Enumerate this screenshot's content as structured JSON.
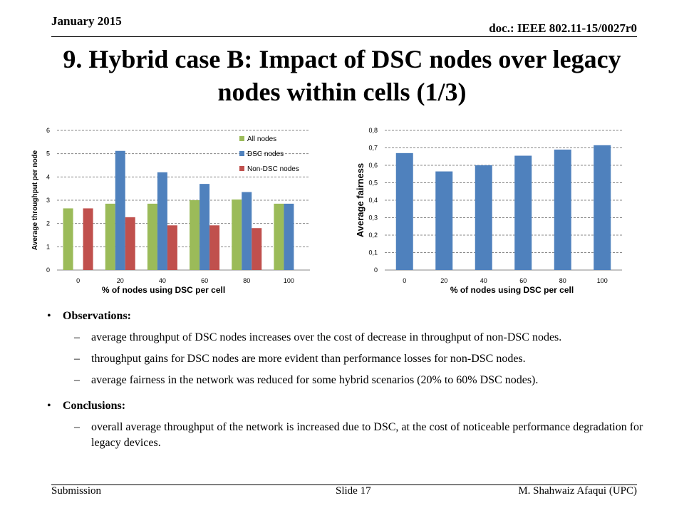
{
  "header": {
    "date": "January 2015",
    "doc": "doc.: IEEE 802.11-15/0027r0"
  },
  "title": "9. Hybrid case B: Impact of DSC nodes over legacy nodes within cells (1/3)",
  "colors": {
    "all_nodes": "#9BBB59",
    "dsc_nodes": "#4F81BD",
    "non_dsc_nodes": "#C0504D"
  },
  "chart_data": [
    {
      "type": "bar",
      "categories": [
        "0",
        "20",
        "40",
        "60",
        "80",
        "100"
      ],
      "xlabel": "% of nodes using DSC per cell",
      "ylabel": "Average throughput per node",
      "ylim": [
        0,
        6
      ],
      "yticks": [
        "0",
        "1",
        "2",
        "3",
        "4",
        "5",
        "6"
      ],
      "grid": true,
      "legend": "top-right",
      "series": [
        {
          "name": "All nodes",
          "values": [
            2.65,
            2.85,
            2.85,
            3.0,
            3.03,
            2.85
          ]
        },
        {
          "name": "DSC nodes",
          "values": [
            null,
            5.12,
            4.2,
            3.7,
            3.35,
            2.85
          ]
        },
        {
          "name": "Non-DSC nodes",
          "values": [
            2.65,
            2.27,
            1.92,
            1.92,
            1.8,
            null
          ]
        }
      ]
    },
    {
      "type": "bar",
      "categories": [
        "0",
        "20",
        "40",
        "60",
        "80",
        "100"
      ],
      "xlabel": "% of nodes using DSC per cell",
      "ylabel": "Average fairness",
      "ylim": [
        0,
        0.8
      ],
      "yticks": [
        "0",
        "0,1",
        "0,2",
        "0,3",
        "0,4",
        "0,5",
        "0,6",
        "0,7",
        "0,8"
      ],
      "grid": true,
      "series": [
        {
          "values": [
            0.67,
            0.565,
            0.6,
            0.655,
            0.69,
            0.715
          ]
        }
      ]
    }
  ],
  "observations": {
    "heading": "Observations:",
    "items": [
      "average throughput of DSC nodes increases over the cost of decrease in throughput of non-DSC nodes.",
      "throughput gains for DSC nodes are more evident than performance losses for non-DSC nodes.",
      "average fairness in the network was reduced for some hybrid scenarios (20% to 60% DSC nodes)."
    ]
  },
  "conclusions": {
    "heading": "Conclusions:",
    "items": [
      "overall average throughput of the network is increased due to DSC, at the cost of noticeable performance degradation for legacy devices."
    ]
  },
  "footer": {
    "left": "Submission",
    "center": "Slide 17",
    "right": "M. Shahwaiz Afaqui (UPC)"
  }
}
